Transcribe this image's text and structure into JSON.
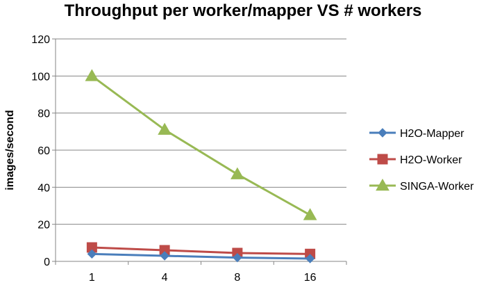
{
  "chart_data": {
    "type": "line",
    "title": "Throughput per worker/mapper VS # workers",
    "xlabel": "",
    "ylabel": "images/second",
    "categories": [
      "1",
      "4",
      "8",
      "16"
    ],
    "ylim": [
      0,
      120
    ],
    "yticks": [
      0,
      20,
      40,
      60,
      80,
      100,
      120
    ],
    "grid": true,
    "legend": "right",
    "series": [
      {
        "name": "H2O-Mapper",
        "values": [
          4,
          3,
          2,
          1.5
        ],
        "color": "#4a7ebb",
        "marker": "diamond"
      },
      {
        "name": "H2O-Worker",
        "values": [
          7.5,
          6,
          4.5,
          4
        ],
        "color": "#be4b48",
        "marker": "square"
      },
      {
        "name": "SINGA-Worker",
        "values": [
          100,
          71,
          47,
          25
        ],
        "color": "#98b954",
        "marker": "triangle"
      }
    ]
  }
}
